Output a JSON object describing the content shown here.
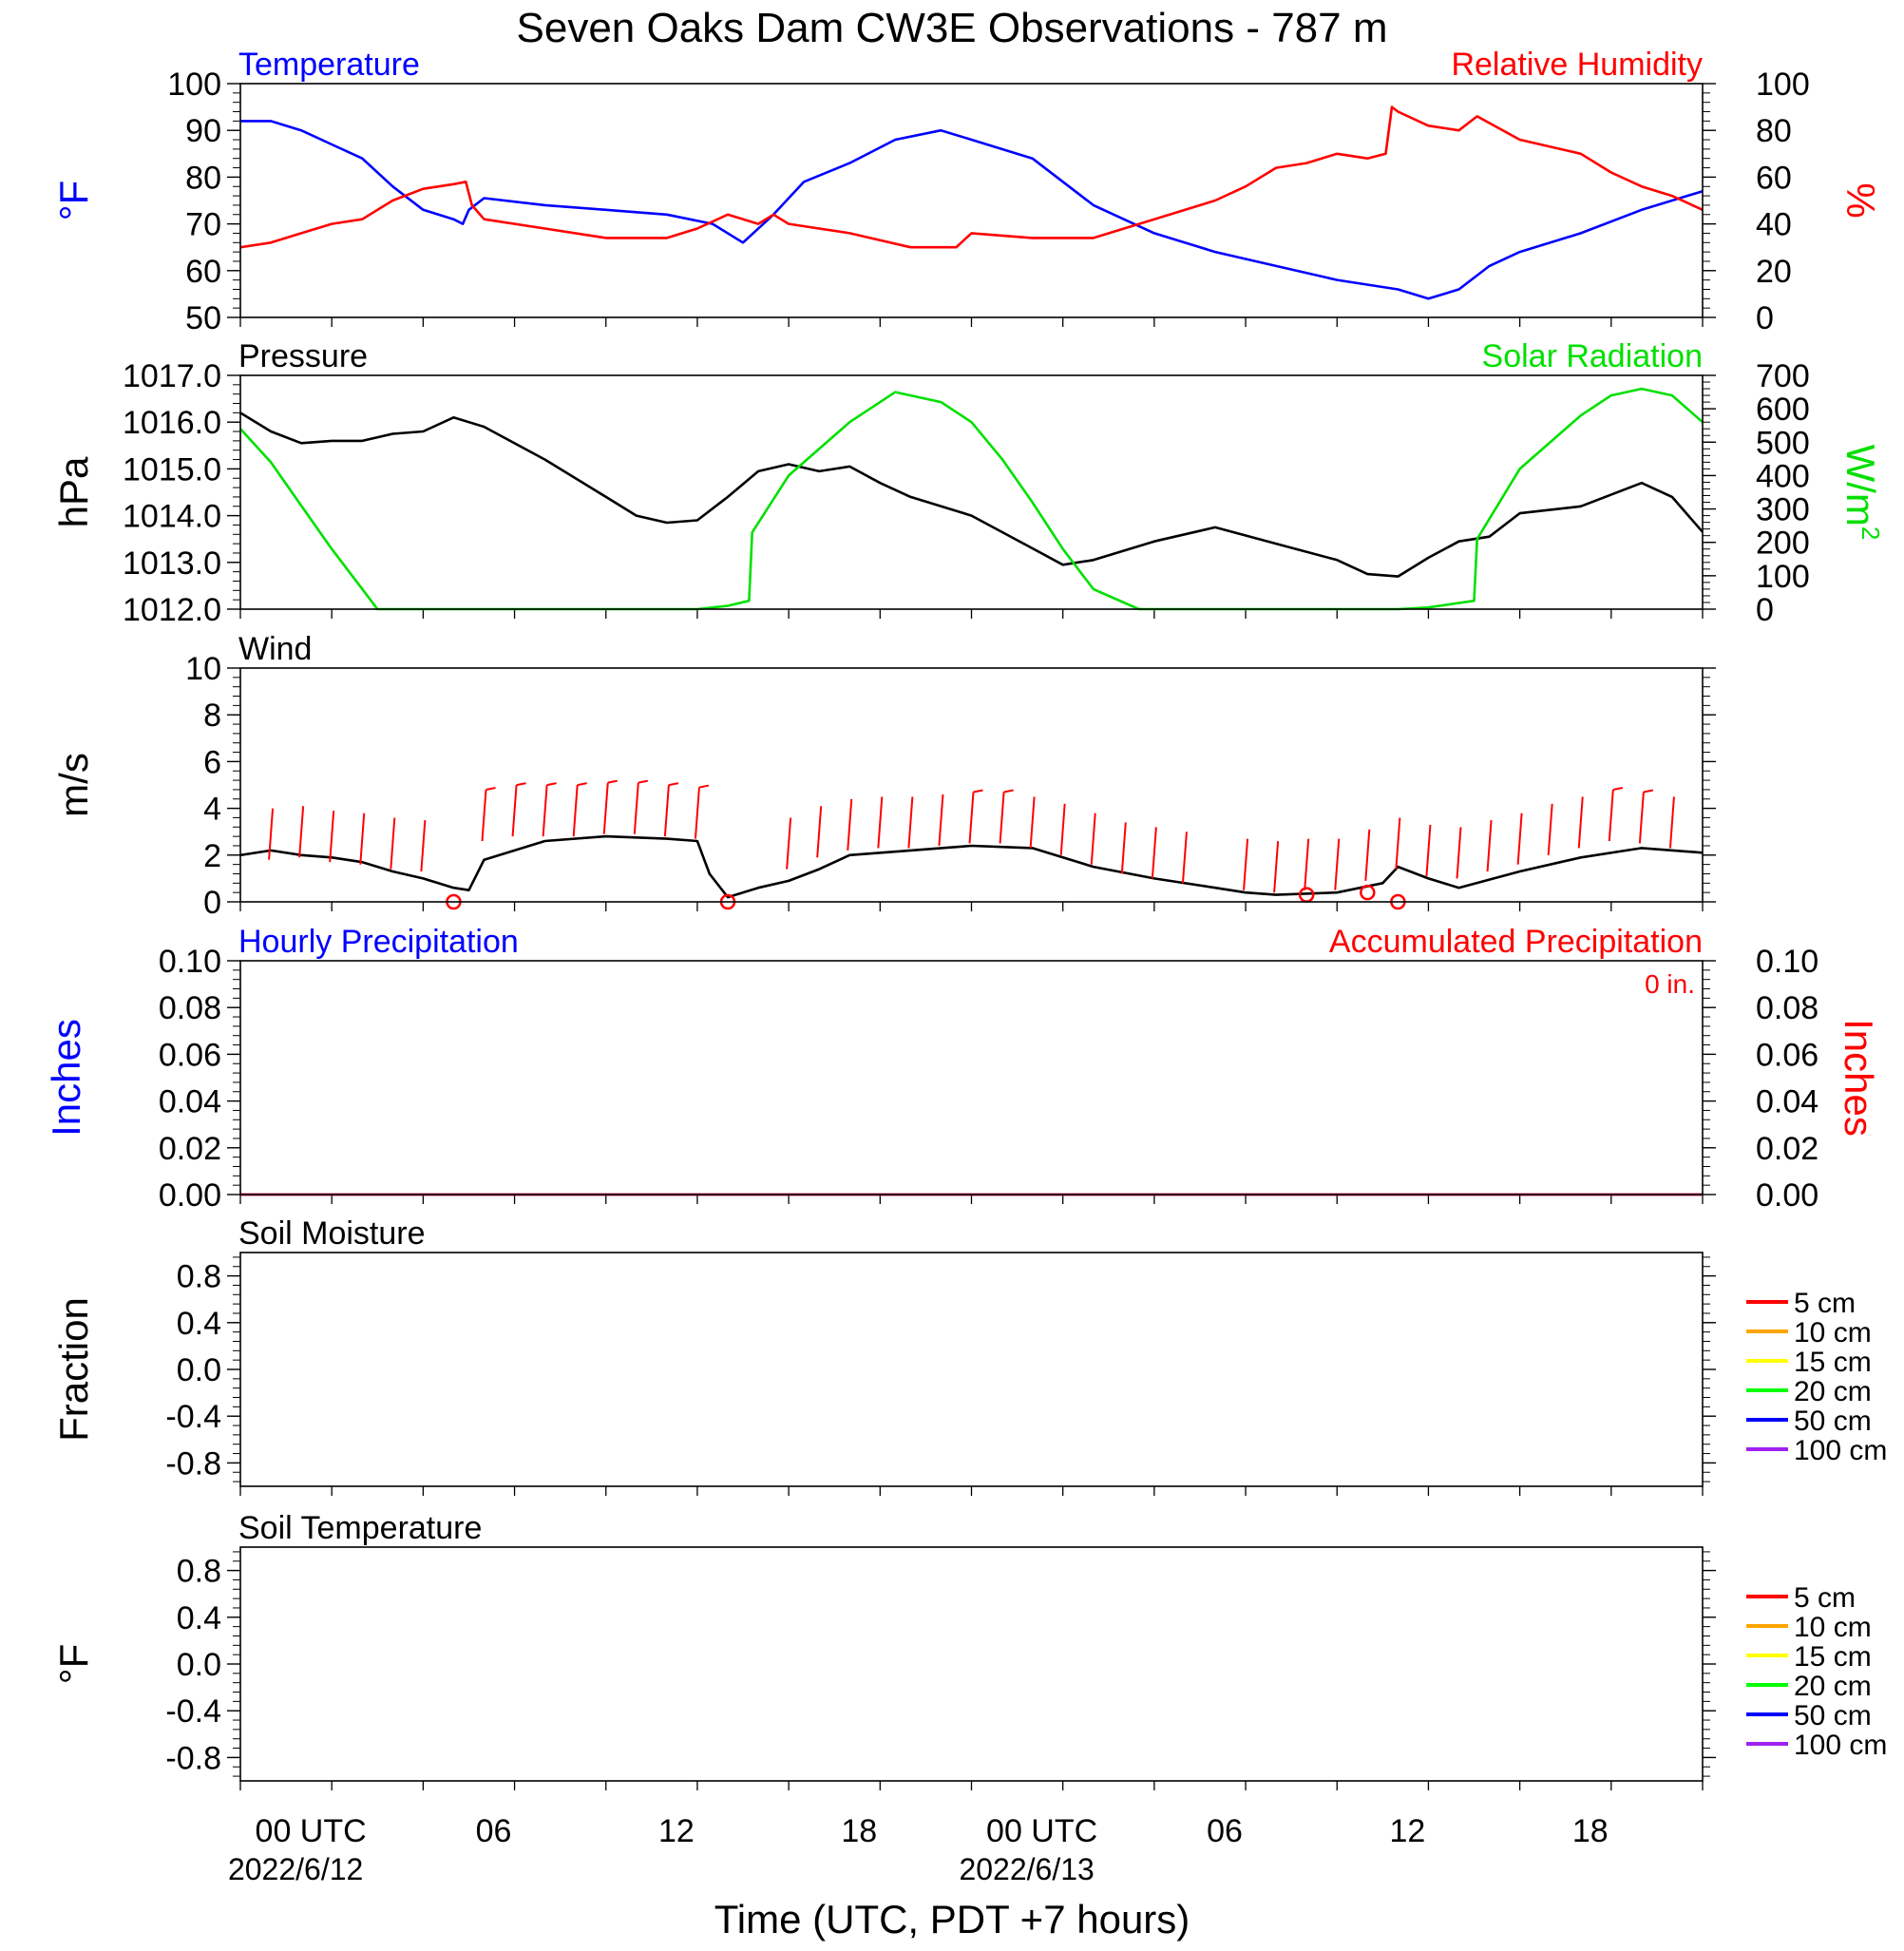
{
  "title": "Seven Oaks Dam CW3E Observations - 787 m",
  "xaxis": {
    "label": "Time (UTC, PDT +7 hours)",
    "range_hours_from_2022_06_12_00utc": [
      -2,
      46
    ],
    "ticks": [
      {
        "hour": 0,
        "label": "00 UTC",
        "date": "2022/6/12"
      },
      {
        "hour": 6,
        "label": "06",
        "date": ""
      },
      {
        "hour": 12,
        "label": "12",
        "date": ""
      },
      {
        "hour": 18,
        "label": "18",
        "date": ""
      },
      {
        "hour": 24,
        "label": "00 UTC",
        "date": "2022/6/13"
      },
      {
        "hour": 30,
        "label": "06",
        "date": ""
      },
      {
        "hour": 36,
        "label": "12",
        "date": ""
      },
      {
        "hour": 42,
        "label": "18",
        "date": ""
      }
    ]
  },
  "colors": {
    "temperature": "#0000ff",
    "humidity": "#ff0000",
    "pressure": "#000000",
    "solar": "#00e000",
    "wind": "#000000",
    "barbs": "#ff0000",
    "precip_hourly": "#0000ff",
    "precip_accum": "#ff0000"
  },
  "chart_data": [
    {
      "id": "temp_rh",
      "type": "line",
      "left_title": "Temperature",
      "right_title": "Relative Humidity",
      "left_ylabel": "°F",
      "right_ylabel": "%",
      "left_ylim": [
        50,
        100
      ],
      "left_ticks": [
        50,
        60,
        70,
        80,
        90,
        100
      ],
      "right_ylim": [
        0,
        100
      ],
      "right_ticks": [
        0,
        20,
        40,
        60,
        80,
        100
      ],
      "series": [
        {
          "name": "Temperature",
          "axis": "left",
          "color": "#0000ff",
          "x": [
            -2,
            -1,
            0,
            1,
            2,
            3,
            4,
            5,
            5.3,
            5.5,
            6,
            8,
            10,
            12,
            13.5,
            14.5,
            15.5,
            16.5,
            18,
            19.5,
            21,
            22,
            24,
            26,
            28,
            30,
            32,
            34,
            36,
            37,
            38,
            39,
            40,
            42,
            44,
            45,
            46
          ],
          "y": [
            92,
            92,
            90,
            87,
            84,
            78,
            73,
            71,
            70,
            73,
            75.5,
            74,
            73,
            72,
            70,
            66,
            72,
            79,
            83,
            88,
            90,
            88,
            84,
            74,
            68,
            64,
            61,
            58,
            56,
            54,
            56,
            61,
            64,
            68,
            73,
            75,
            77
          ]
        },
        {
          "name": "Relative Humidity",
          "axis": "right",
          "color": "#ff0000",
          "x": [
            -2,
            -1,
            0,
            1,
            2,
            3,
            4,
            5,
            5.4,
            5.6,
            6,
            8,
            10,
            12,
            13,
            14,
            15,
            15.5,
            16,
            18,
            20,
            21.5,
            22,
            24,
            26,
            28,
            30,
            31,
            32,
            33,
            34,
            35,
            35.6,
            35.8,
            36,
            37,
            38,
            38.6,
            40,
            42,
            43,
            44,
            45,
            46
          ],
          "y": [
            30,
            32,
            36,
            40,
            42,
            50,
            55,
            57,
            58,
            48,
            42,
            38,
            34,
            34,
            38,
            44,
            40,
            44,
            40,
            36,
            30,
            30,
            36,
            34,
            34,
            42,
            50,
            56,
            64,
            66,
            70,
            68,
            70,
            90,
            88,
            82,
            80,
            86,
            76,
            70,
            62,
            56,
            52,
            46
          ]
        }
      ]
    },
    {
      "id": "pressure_solar",
      "type": "line",
      "left_title": "Pressure",
      "right_title": "Solar Radiation",
      "left_ylabel": "hPa",
      "right_ylabel": "W/m",
      "right_ylabel_sup": "2",
      "left_ylim": [
        1012,
        1017
      ],
      "left_ticks": [
        "1012.0",
        "1013.0",
        "1014.0",
        "1015.0",
        "1016.0",
        "1017.0"
      ],
      "right_ylim": [
        0,
        700
      ],
      "right_ticks": [
        0,
        100,
        200,
        300,
        400,
        500,
        600,
        700
      ],
      "series": [
        {
          "name": "Pressure",
          "axis": "left",
          "color": "#000000",
          "x": [
            -2,
            -1,
            0,
            1,
            2,
            3,
            4,
            5,
            6,
            8,
            10,
            11,
            12,
            13,
            14,
            15,
            16,
            17,
            18,
            19,
            20,
            22,
            24,
            25,
            26,
            28,
            30,
            32,
            34,
            35,
            36,
            37,
            38,
            39,
            40,
            42,
            44,
            45,
            46
          ],
          "y": [
            1016.2,
            1015.8,
            1015.55,
            1015.6,
            1015.6,
            1015.75,
            1015.8,
            1016.1,
            1015.9,
            1015.2,
            1014.4,
            1014.0,
            1013.85,
            1013.9,
            1014.4,
            1014.95,
            1015.1,
            1014.95,
            1015.05,
            1014.7,
            1014.4,
            1014.0,
            1013.3,
            1012.95,
            1013.05,
            1013.45,
            1013.75,
            1013.4,
            1013.05,
            1012.75,
            1012.7,
            1013.1,
            1013.45,
            1013.55,
            1014.05,
            1014.2,
            1014.7,
            1014.4,
            1013.65
          ]
        },
        {
          "name": "Solar Radiation",
          "axis": "right",
          "color": "#00e000",
          "x": [
            -2,
            -1,
            0,
            1,
            2,
            2.5,
            3,
            5,
            7,
            9,
            11,
            13,
            14,
            14.7,
            14.8,
            16,
            18,
            19.5,
            21,
            22,
            23,
            24,
            25,
            26,
            27,
            27.5,
            28,
            30,
            32,
            34,
            36,
            37,
            38.5,
            38.6,
            40,
            42,
            43,
            44,
            45,
            46
          ],
          "y": [
            540,
            440,
            310,
            180,
            60,
            0,
            0,
            0,
            0,
            0,
            0,
            0,
            10,
            25,
            230,
            400,
            560,
            650,
            620,
            560,
            450,
            320,
            180,
            60,
            20,
            0,
            0,
            0,
            0,
            0,
            0,
            5,
            25,
            210,
            420,
            580,
            640,
            660,
            640,
            560
          ]
        }
      ]
    },
    {
      "id": "wind",
      "type": "line",
      "left_title": "Wind",
      "left_ylabel": "m/s",
      "left_ylim": [
        0,
        10
      ],
      "left_ticks": [
        0,
        2,
        4,
        6,
        8,
        10
      ],
      "series": [
        {
          "name": "Wind",
          "axis": "left",
          "color": "#000000",
          "x": [
            -2,
            -1,
            0,
            1,
            2,
            3,
            4,
            5,
            5.5,
            6,
            8,
            10,
            12,
            13,
            13.4,
            14,
            15,
            16,
            17,
            18,
            20,
            22,
            24,
            26,
            28,
            30,
            31,
            32,
            34,
            35.5,
            36,
            37,
            38,
            40,
            42,
            44,
            46
          ],
          "y": [
            2,
            2.2,
            2,
            1.9,
            1.7,
            1.3,
            1,
            0.6,
            0.5,
            1.8,
            2.6,
            2.8,
            2.7,
            2.6,
            1.2,
            0.2,
            0.6,
            0.9,
            1.4,
            2,
            2.2,
            2.4,
            2.3,
            1.5,
            1,
            0.6,
            0.4,
            0.3,
            0.4,
            0.8,
            1.5,
            1,
            0.6,
            1.3,
            1.9,
            2.3,
            2.1
          ]
        },
        {
          "name": "Wind barbs",
          "axis": "left",
          "color": "#ff0000",
          "kind": "barbs",
          "x": [
            -1,
            0,
            1,
            2,
            3,
            4,
            6,
            7,
            8,
            9,
            10,
            11,
            12,
            13,
            16,
            17,
            18,
            19,
            20,
            21,
            22,
            23,
            24,
            25,
            26,
            27,
            28,
            29,
            31,
            32,
            33,
            34,
            35,
            36,
            37,
            38,
            39,
            40,
            41,
            42,
            43,
            44,
            45
          ],
          "y": [
            1.8,
            1.9,
            1.7,
            1.6,
            1.4,
            1.3,
            2.6,
            2.8,
            2.8,
            2.8,
            2.9,
            2.9,
            2.8,
            2.7,
            1.4,
            1.9,
            2.2,
            2.3,
            2.3,
            2.4,
            2.5,
            2.5,
            2.3,
            2.0,
            1.6,
            1.2,
            1.0,
            0.8,
            0.5,
            0.4,
            0.5,
            0.5,
            0.9,
            1.4,
            1.1,
            1.0,
            1.3,
            1.6,
            2.0,
            2.3,
            2.6,
            2.5,
            2.3
          ]
        },
        {
          "name": "Calm",
          "axis": "left",
          "color": "#ff0000",
          "kind": "circles",
          "x": [
            5,
            14,
            33,
            35,
            36
          ],
          "y": [
            0,
            0,
            0.3,
            0.4,
            0
          ]
        }
      ]
    },
    {
      "id": "precip",
      "type": "line",
      "left_title": "Hourly Precipitation",
      "right_title": "Accumulated Precipitation",
      "annotation": "0 in.",
      "left_ylabel": "Inches",
      "right_ylabel": "Inches",
      "left_ylim": [
        0,
        0.1
      ],
      "left_ticks": [
        "0.00",
        "0.02",
        "0.04",
        "0.06",
        "0.08",
        "0.10"
      ],
      "right_ylim": [
        0,
        0.1
      ],
      "right_ticks": [
        "0.00",
        "0.02",
        "0.04",
        "0.06",
        "0.08",
        "0.10"
      ],
      "series": [
        {
          "name": "Hourly Precipitation",
          "axis": "left",
          "color": "#0000ff",
          "x": [
            -2,
            46
          ],
          "y": [
            0,
            0
          ]
        },
        {
          "name": "Accumulated Precipitation",
          "axis": "right",
          "color": "#ff0000",
          "x": [
            -2,
            46
          ],
          "y": [
            0,
            0
          ]
        }
      ]
    },
    {
      "id": "soil_moisture",
      "type": "line",
      "left_title": "Soil Moisture",
      "left_ylabel": "Fraction",
      "left_ylim": [
        -1,
        1
      ],
      "left_ticks": [
        "-0.8",
        "-0.4",
        "0.0",
        "0.4",
        "0.8"
      ],
      "legend": [
        {
          "name": "5 cm",
          "color": "#ff0000"
        },
        {
          "name": "10 cm",
          "color": "#ffa500"
        },
        {
          "name": "15 cm",
          "color": "#ffff00"
        },
        {
          "name": "20 cm",
          "color": "#00ff00"
        },
        {
          "name": "50 cm",
          "color": "#0000ff"
        },
        {
          "name": "100 cm",
          "color": "#a020f0"
        }
      ],
      "series": []
    },
    {
      "id": "soil_temp",
      "type": "line",
      "left_title": "Soil Temperature",
      "left_ylabel": "°F",
      "left_ylim": [
        -1,
        1
      ],
      "left_ticks": [
        "-0.8",
        "-0.4",
        "0.0",
        "0.4",
        "0.8"
      ],
      "legend": [
        {
          "name": "5 cm",
          "color": "#ff0000"
        },
        {
          "name": "10 cm",
          "color": "#ffa500"
        },
        {
          "name": "15 cm",
          "color": "#ffff00"
        },
        {
          "name": "20 cm",
          "color": "#00ff00"
        },
        {
          "name": "50 cm",
          "color": "#0000ff"
        },
        {
          "name": "100 cm",
          "color": "#a020f0"
        }
      ],
      "series": []
    }
  ]
}
